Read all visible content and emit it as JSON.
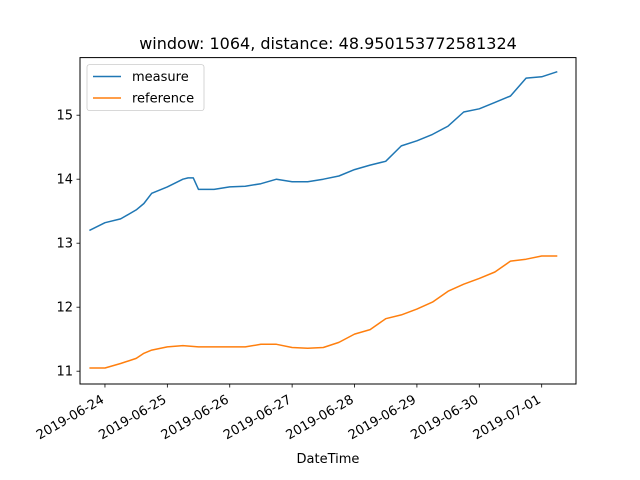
{
  "chart_data": {
    "type": "line",
    "title": "window: 1064, distance: 48.950153772581324",
    "xlabel": "DateTime",
    "ylabel": "",
    "x_ticks": [
      "2019-06-24",
      "2019-06-25",
      "2019-06-26",
      "2019-06-27",
      "2019-06-28",
      "2019-06-29",
      "2019-06-30",
      "2019-07-01"
    ],
    "y_ticks": [
      11,
      12,
      13,
      14,
      15
    ],
    "xlim": [
      "2019-06-23T14:24",
      "2019-07-01T13:12"
    ],
    "ylim": [
      10.8,
      15.9
    ],
    "grid": false,
    "legend_position": "top-left",
    "series": [
      {
        "name": "measure",
        "color": "#1f77b4",
        "x": [
          "2019-06-23T18:00",
          "2019-06-24T00:00",
          "2019-06-24T06:00",
          "2019-06-24T12:00",
          "2019-06-24T15:00",
          "2019-06-24T18:00",
          "2019-06-25T00:00",
          "2019-06-25T06:00",
          "2019-06-25T08:00",
          "2019-06-25T10:00",
          "2019-06-25T12:00",
          "2019-06-25T18:00",
          "2019-06-26T00:00",
          "2019-06-26T06:00",
          "2019-06-26T12:00",
          "2019-06-26T18:00",
          "2019-06-27T00:00",
          "2019-06-27T06:00",
          "2019-06-27T12:00",
          "2019-06-27T18:00",
          "2019-06-28T00:00",
          "2019-06-28T06:00",
          "2019-06-28T12:00",
          "2019-06-28T18:00",
          "2019-06-29T00:00",
          "2019-06-29T06:00",
          "2019-06-29T12:00",
          "2019-06-29T18:00",
          "2019-06-30T00:00",
          "2019-06-30T06:00",
          "2019-06-30T12:00",
          "2019-06-30T18:00",
          "2019-07-01T00:00",
          "2019-07-01T06:00"
        ],
        "values": [
          13.2,
          13.32,
          13.38,
          13.52,
          13.62,
          13.78,
          13.88,
          14.0,
          14.02,
          14.02,
          13.84,
          13.84,
          13.88,
          13.89,
          13.93,
          14.0,
          13.96,
          13.96,
          14.0,
          14.05,
          14.15,
          14.22,
          14.28,
          14.52,
          14.6,
          14.7,
          14.83,
          15.05,
          15.1,
          15.2,
          15.3,
          15.58,
          15.6,
          15.68
        ]
      },
      {
        "name": "reference",
        "color": "#ff7f0e",
        "x": [
          "2019-06-23T18:00",
          "2019-06-24T00:00",
          "2019-06-24T06:00",
          "2019-06-24T12:00",
          "2019-06-24T15:00",
          "2019-06-24T18:00",
          "2019-06-25T00:00",
          "2019-06-25T06:00",
          "2019-06-25T12:00",
          "2019-06-25T18:00",
          "2019-06-26T00:00",
          "2019-06-26T06:00",
          "2019-06-26T12:00",
          "2019-06-26T18:00",
          "2019-06-27T00:00",
          "2019-06-27T06:00",
          "2019-06-27T12:00",
          "2019-06-27T18:00",
          "2019-06-28T00:00",
          "2019-06-28T06:00",
          "2019-06-28T12:00",
          "2019-06-28T18:00",
          "2019-06-29T00:00",
          "2019-06-29T06:00",
          "2019-06-29T12:00",
          "2019-06-29T18:00",
          "2019-06-30T00:00",
          "2019-06-30T06:00",
          "2019-06-30T12:00",
          "2019-06-30T18:00",
          "2019-07-01T00:00",
          "2019-07-01T06:00"
        ],
        "values": [
          11.05,
          11.05,
          11.12,
          11.2,
          11.28,
          11.33,
          11.38,
          11.4,
          11.38,
          11.38,
          11.38,
          11.38,
          11.42,
          11.42,
          11.37,
          11.36,
          11.37,
          11.45,
          11.58,
          11.65,
          11.82,
          11.88,
          11.97,
          12.08,
          12.25,
          12.36,
          12.45,
          12.55,
          12.72,
          12.75,
          12.8,
          12.8
        ]
      }
    ]
  }
}
